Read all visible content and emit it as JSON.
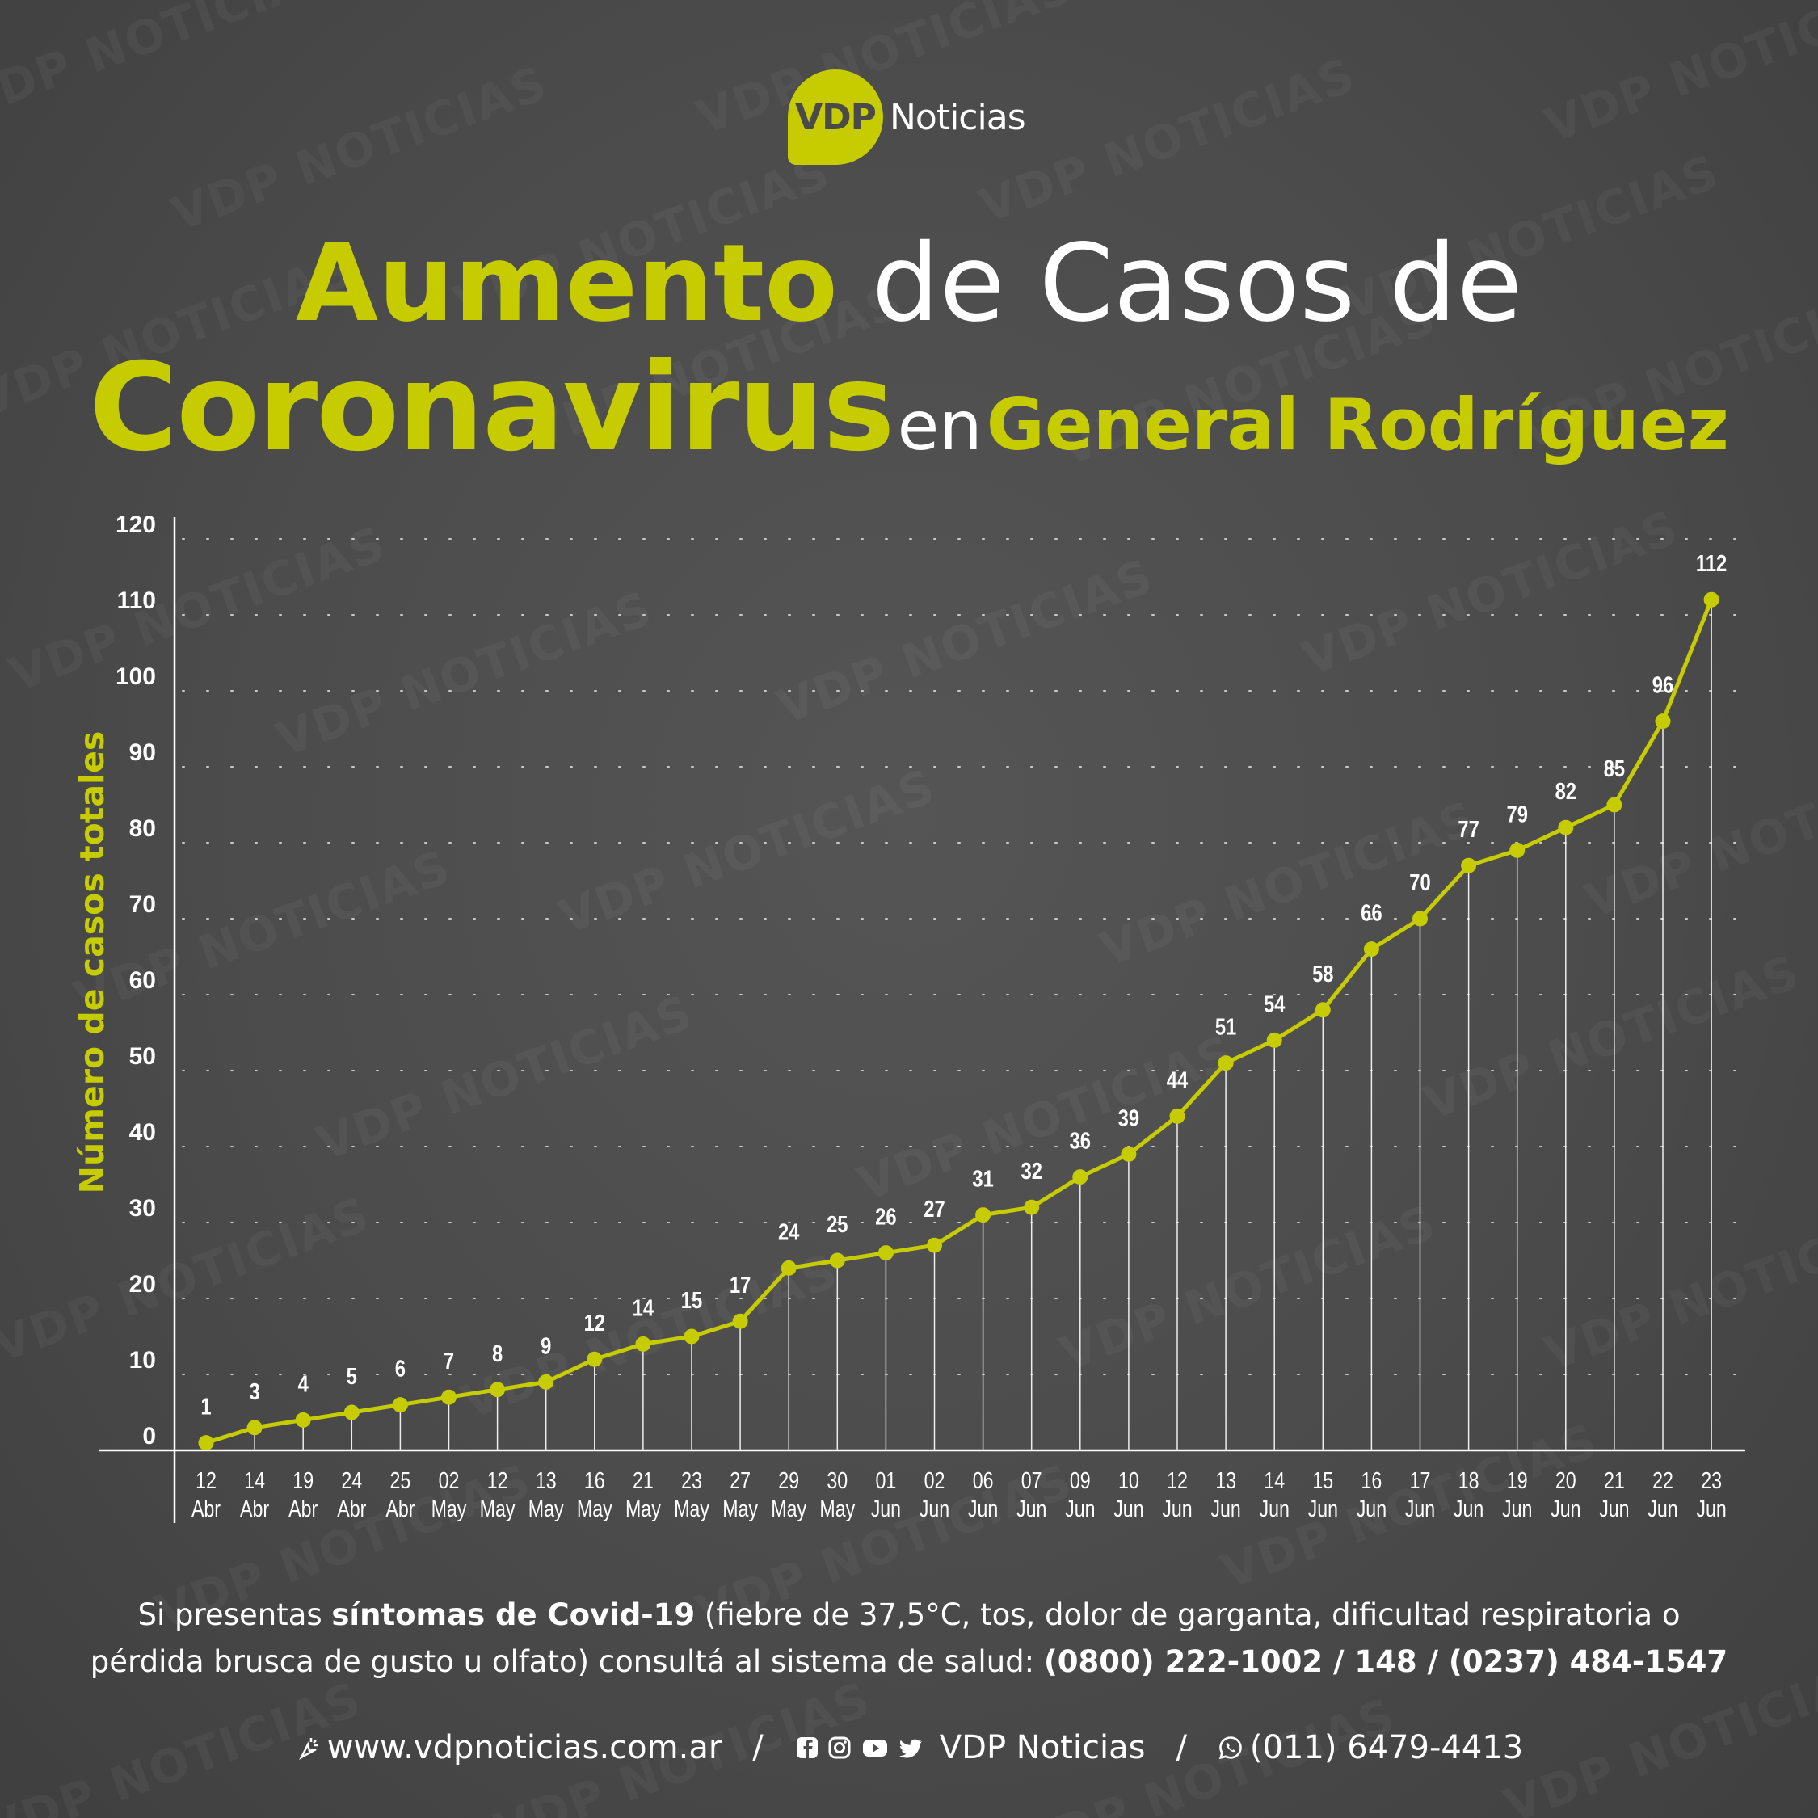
{
  "brand": {
    "logo_mark": "VDP",
    "logo_text": "Noticias",
    "watermark": "VDP NOTICIAS"
  },
  "title": {
    "line1_accent": "Aumento",
    "line1_rest": "de Casos de",
    "line2_accent": "Coronavirus",
    "line2_mid": "en",
    "line2_location": "General Rodríguez"
  },
  "colors": {
    "accent": "#c6cc00",
    "background": "#4b4b4b",
    "text": "#ffffff"
  },
  "chart_data": {
    "type": "line",
    "ylabel": "Número de casos totales",
    "ylim": [
      0,
      120
    ],
    "yticks": [
      "0",
      "10",
      "20",
      "30",
      "40",
      "50",
      "60",
      "70",
      "80",
      "90",
      "100",
      "110",
      "120"
    ],
    "grid": "horizontal dotted",
    "x": [
      {
        "day": "12",
        "month": "Abr"
      },
      {
        "day": "14",
        "month": "Abr"
      },
      {
        "day": "19",
        "month": "Abr"
      },
      {
        "day": "24",
        "month": "Abr"
      },
      {
        "day": "25",
        "month": "Abr"
      },
      {
        "day": "02",
        "month": "May"
      },
      {
        "day": "12",
        "month": "May"
      },
      {
        "day": "13",
        "month": "May"
      },
      {
        "day": "16",
        "month": "May"
      },
      {
        "day": "21",
        "month": "May"
      },
      {
        "day": "23",
        "month": "May"
      },
      {
        "day": "27",
        "month": "May"
      },
      {
        "day": "29",
        "month": "May"
      },
      {
        "day": "30",
        "month": "May"
      },
      {
        "day": "01",
        "month": "Jun"
      },
      {
        "day": "02",
        "month": "Jun"
      },
      {
        "day": "06",
        "month": "Jun"
      },
      {
        "day": "07",
        "month": "Jun"
      },
      {
        "day": "09",
        "month": "Jun"
      },
      {
        "day": "10",
        "month": "Jun"
      },
      {
        "day": "12",
        "month": "Jun"
      },
      {
        "day": "13",
        "month": "Jun"
      },
      {
        "day": "14",
        "month": "Jun"
      },
      {
        "day": "15",
        "month": "Jun"
      },
      {
        "day": "16",
        "month": "Jun"
      },
      {
        "day": "17",
        "month": "Jun"
      },
      {
        "day": "18",
        "month": "Jun"
      },
      {
        "day": "19",
        "month": "Jun"
      },
      {
        "day": "20",
        "month": "Jun"
      },
      {
        "day": "21",
        "month": "Jun"
      },
      {
        "day": "22",
        "month": "Jun"
      },
      {
        "day": "23",
        "month": "Jun"
      }
    ],
    "values": [
      1,
      3,
      4,
      5,
      6,
      7,
      8,
      9,
      12,
      14,
      15,
      17,
      24,
      25,
      26,
      27,
      31,
      32,
      36,
      39,
      44,
      51,
      54,
      58,
      66,
      70,
      77,
      79,
      82,
      85,
      96,
      112
    ]
  },
  "footer": {
    "line1_pre": "Si presentas ",
    "line1_bold": "síntomas de Covid-19",
    "line1_post": " (fiebre de 37,5°C, tos, dolor de garganta, dificultad respiratoria o",
    "line2_pre": "pérdida brusca de gusto u olfato) consultá al sistema de salud: ",
    "line2_bold": "(0800) 222-1002 / 148 / (0237) 484-1547"
  },
  "contact": {
    "website": "www.vdpnoticias.com.ar",
    "separator": "/",
    "social_name": "VDP Noticias",
    "phone": "(011) 6479-4413",
    "icons": [
      "pointer-icon",
      "facebook-icon",
      "instagram-icon",
      "youtube-icon",
      "twitter-icon",
      "whatsapp-icon"
    ]
  }
}
